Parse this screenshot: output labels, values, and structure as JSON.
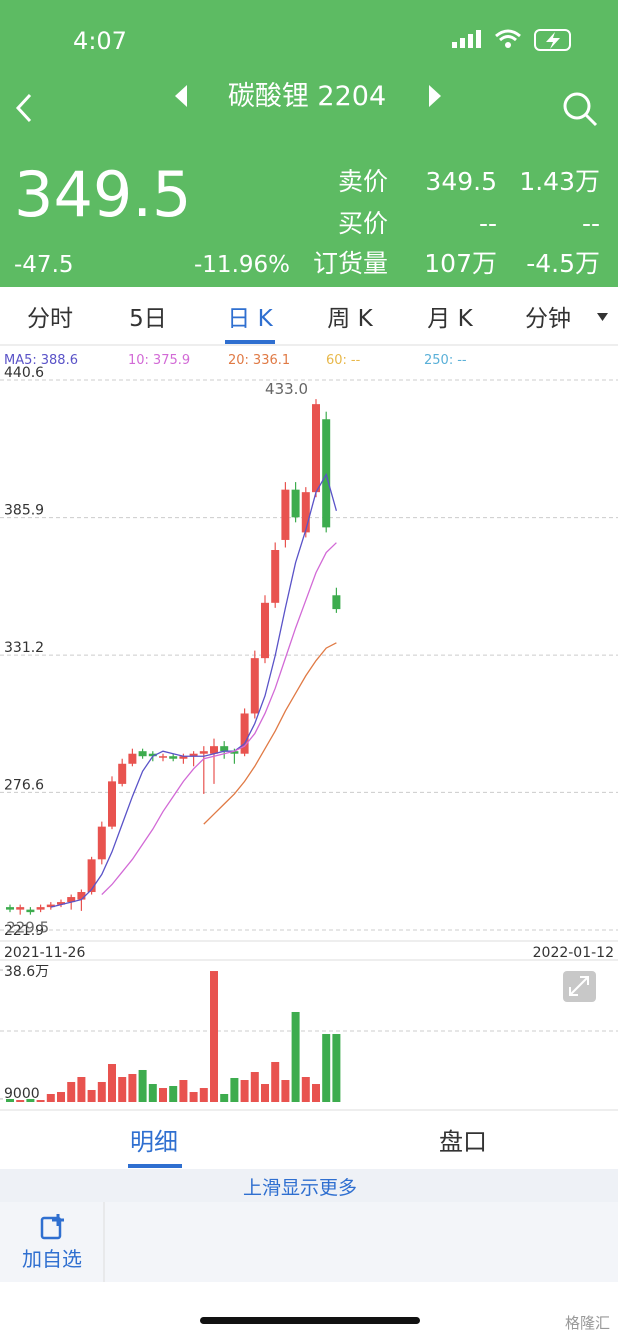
{
  "status_bar": {
    "time": "4:07"
  },
  "header": {
    "title": "碳酸锂 2204"
  },
  "quote": {
    "price": "349.5",
    "change": "-47.5",
    "change_percent": "-11.96%",
    "rows": [
      [
        "卖价",
        "349.5",
        "1.43万"
      ],
      [
        "买价",
        "--",
        "--"
      ],
      [
        "订货量",
        "107万",
        "-4.5万"
      ]
    ]
  },
  "tabs": [
    "分时",
    "5日",
    "日 K",
    "周 K",
    "月 K",
    "分钟"
  ],
  "chart_data": [
    {
      "type": "candlestick",
      "x_labels": [
        "2021-11-26",
        "2022-01-12"
      ],
      "open": [
        231,
        230,
        230,
        230,
        231,
        232,
        233,
        234,
        237,
        250,
        263,
        280,
        288,
        293,
        292,
        291,
        291,
        290,
        291,
        292,
        292,
        295,
        293,
        292,
        308,
        330,
        352,
        377,
        397,
        380,
        396,
        425,
        355
      ],
      "high": [
        232,
        232,
        231,
        232,
        233,
        234,
        236,
        238,
        251,
        265,
        283,
        290,
        294,
        294,
        293,
        292,
        292,
        292,
        293,
        295,
        298,
        297,
        294,
        310,
        333,
        355,
        376,
        400,
        400,
        398,
        433,
        428,
        358
      ],
      "low": [
        229,
        228,
        228,
        229,
        230,
        231,
        230,
        229.5,
        236,
        248,
        262,
        279,
        287,
        290,
        289,
        289,
        289,
        288,
        287,
        276,
        280,
        290,
        288,
        291,
        306,
        328,
        350,
        374,
        384,
        378,
        394,
        380,
        348
      ],
      "close": [
        230,
        231,
        229,
        231,
        232,
        233,
        235,
        237,
        250,
        263,
        281,
        288,
        292,
        291,
        291,
        291,
        290,
        291,
        292,
        293,
        295,
        293,
        292,
        308,
        330,
        352,
        373,
        397,
        386,
        396,
        431,
        382,
        349.5
      ],
      "up_color": "#e8534f",
      "down_color": "#3dac4e",
      "max_label": "433.0",
      "min_label": "229.5",
      "ylim": [
        221.9,
        440.6
      ],
      "yticks": [
        440.6,
        385.9,
        331.2,
        276.6,
        221.9
      ],
      "series": [
        {
          "name": "MA5:",
          "color": "#5a53c8",
          "values": [
            null,
            null,
            null,
            null,
            231,
            232,
            233,
            234,
            238,
            244,
            253,
            264,
            275,
            285,
            291,
            293,
            292,
            291,
            291,
            291,
            292,
            293,
            293,
            296,
            304,
            315,
            331,
            350,
            368,
            381,
            396,
            403,
            388.6
          ]
        },
        {
          "name": "10:",
          "color": "#d26ad6",
          "values": [
            null,
            null,
            null,
            null,
            null,
            null,
            null,
            null,
            null,
            236,
            240,
            245,
            250,
            256,
            262,
            269,
            275,
            281,
            286,
            290,
            291,
            292,
            293,
            295,
            300,
            308,
            318,
            330,
            342,
            353,
            364,
            372,
            375.9
          ]
        },
        {
          "name": "20:",
          "color": "#e07a45",
          "values": [
            null,
            null,
            null,
            null,
            null,
            null,
            null,
            null,
            null,
            null,
            null,
            null,
            null,
            null,
            null,
            null,
            null,
            null,
            null,
            264,
            268,
            272,
            276,
            281,
            287,
            294,
            301,
            309,
            316,
            323,
            329,
            334,
            336.1
          ]
        },
        {
          "name": "60:",
          "color": "#e8b84a",
          "value_label": "--"
        },
        {
          "name": "250:",
          "color": "#5ab0d8",
          "value_label": "--"
        }
      ]
    },
    {
      "type": "bar",
      "values": [
        8800,
        5800,
        8800,
        5800,
        23400,
        29200,
        58500,
        73100,
        35100,
        58500,
        111100,
        73100,
        81900,
        93600,
        52600,
        40900,
        46800,
        64300,
        29200,
        40900,
        383000,
        23400,
        70200,
        64300,
        87700,
        52600,
        117000,
        64300,
        263200,
        73100,
        52600,
        198800,
        198800
      ],
      "ylim": [
        0,
        386000
      ],
      "yticks": [
        {
          "value": 386000,
          "label": "38.6万"
        },
        9000
      ]
    }
  ],
  "detail_tabs": [
    "明细",
    "盘口"
  ],
  "more_hint": "上滑显示更多",
  "toolbar": {
    "add_watchlist": "加自选"
  },
  "watermark": "格隆汇"
}
